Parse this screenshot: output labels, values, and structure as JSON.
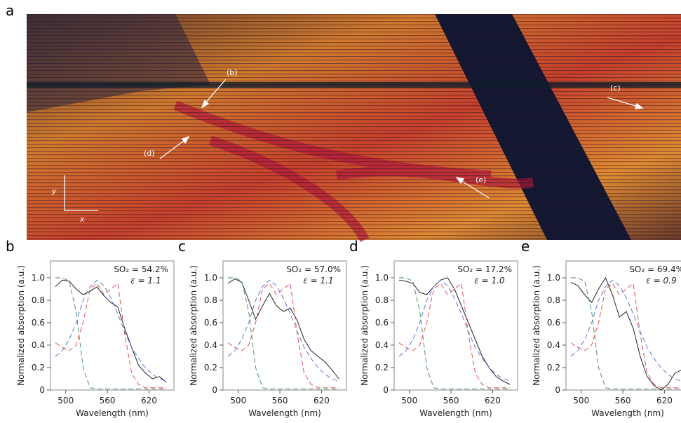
{
  "image_panel": {
    "label": "a",
    "annotations": [
      "(b)",
      "(c)",
      "(d)",
      "(e)"
    ],
    "axis_y": "y",
    "axis_x": "x"
  },
  "chart_data": [
    {
      "type": "line",
      "panel": "b",
      "annotation": [
        "SO₂ = 54.2%",
        "ε = 1.1"
      ],
      "xlabel": "Wavelength (nm)",
      "ylabel": "Normalized absorption (a.u.)",
      "x": [
        485,
        495,
        505,
        515,
        525,
        535,
        545,
        555,
        565,
        575,
        585,
        595,
        605,
        615,
        625,
        635,
        645
      ],
      "xlim": [
        478,
        656
      ],
      "ylim": [
        0,
        1.15
      ],
      "xticks": [
        500,
        560,
        620
      ],
      "yticks": [
        0,
        0.2,
        0.4,
        0.6,
        0.8,
        {
          "value": 1,
          "label": "1.0"
        }
      ],
      "series": [
        {
          "color": "#222222",
          "dashed": false,
          "values": [
            0.92,
            0.98,
            0.97,
            0.9,
            0.85,
            0.88,
            0.92,
            0.84,
            0.78,
            0.74,
            0.55,
            0.38,
            0.22,
            0.15,
            0.1,
            0.12,
            0.07
          ]
        },
        {
          "color": "#3a8a4a",
          "dashed": true,
          "values": [
            1.0,
            1.0,
            0.97,
            0.7,
            0.2,
            0.02,
            0.01,
            0.01,
            0.01,
            0.01,
            0.01,
            0.01,
            0.01,
            0.01,
            0.01,
            0.01,
            0.01
          ]
        },
        {
          "color": "#e0404a",
          "dashed": true,
          "values": [
            0.42,
            0.38,
            0.35,
            0.4,
            0.6,
            0.9,
            0.95,
            0.85,
            0.9,
            0.95,
            0.5,
            0.15,
            0.05,
            0.02,
            0.02,
            0.02,
            0.02
          ]
        },
        {
          "color": "#4a6ad0",
          "dashed": true,
          "values": [
            0.3,
            0.35,
            0.45,
            0.6,
            0.8,
            0.92,
            0.98,
            0.93,
            0.82,
            0.68,
            0.52,
            0.38,
            0.28,
            0.2,
            0.14,
            0.1,
            0.08
          ]
        }
      ]
    },
    {
      "type": "line",
      "panel": "c",
      "annotation": [
        "SO₂ = 57.0%",
        "ε = 1.1"
      ],
      "xlabel": "Wavelength (nm)",
      "ylabel": "Normalized absorption (a.u.)",
      "x": [
        485,
        495,
        505,
        515,
        525,
        535,
        545,
        555,
        565,
        575,
        585,
        595,
        605,
        615,
        625,
        635,
        645
      ],
      "xlim": [
        478,
        656
      ],
      "ylim": [
        0,
        1.15
      ],
      "xticks": [
        500,
        560,
        620
      ],
      "yticks": [
        0,
        0.2,
        0.4,
        0.6,
        0.8,
        {
          "value": 1,
          "label": "1.0"
        }
      ],
      "series": [
        {
          "color": "#222222",
          "dashed": false,
          "values": [
            0.95,
            0.99,
            0.96,
            0.8,
            0.63,
            0.75,
            0.86,
            0.75,
            0.7,
            0.73,
            0.62,
            0.45,
            0.35,
            0.3,
            0.25,
            0.18,
            0.1
          ]
        },
        {
          "color": "#3a8a4a",
          "dashed": true,
          "values": [
            1.0,
            1.0,
            0.97,
            0.7,
            0.2,
            0.02,
            0.01,
            0.01,
            0.01,
            0.01,
            0.01,
            0.01,
            0.01,
            0.01,
            0.01,
            0.01,
            0.01
          ]
        },
        {
          "color": "#e0404a",
          "dashed": true,
          "values": [
            0.42,
            0.38,
            0.35,
            0.4,
            0.6,
            0.9,
            0.95,
            0.85,
            0.9,
            0.95,
            0.5,
            0.15,
            0.05,
            0.02,
            0.02,
            0.02,
            0.02
          ]
        },
        {
          "color": "#4a6ad0",
          "dashed": true,
          "values": [
            0.3,
            0.35,
            0.45,
            0.6,
            0.8,
            0.92,
            0.98,
            0.93,
            0.82,
            0.68,
            0.52,
            0.38,
            0.28,
            0.2,
            0.14,
            0.1,
            0.08
          ]
        }
      ]
    },
    {
      "type": "line",
      "panel": "d",
      "annotation": [
        "SO₂ = 17.2%",
        "ε = 1.0"
      ],
      "xlabel": "Wavelength (nm)",
      "ylabel": "Normalized absorption (a.u.)",
      "x": [
        485,
        495,
        505,
        515,
        525,
        535,
        545,
        555,
        565,
        575,
        585,
        595,
        605,
        615,
        625,
        635,
        645
      ],
      "xlim": [
        478,
        656
      ],
      "ylim": [
        0,
        1.15
      ],
      "xticks": [
        500,
        560,
        620
      ],
      "yticks": [
        0,
        0.2,
        0.4,
        0.6,
        0.8,
        {
          "value": 1,
          "label": "1.0"
        }
      ],
      "series": [
        {
          "color": "#222222",
          "dashed": false,
          "values": [
            0.98,
            0.97,
            0.95,
            0.87,
            0.85,
            0.92,
            0.98,
            1.0,
            0.9,
            0.75,
            0.6,
            0.45,
            0.3,
            0.2,
            0.12,
            0.08,
            0.05
          ]
        },
        {
          "color": "#3a8a4a",
          "dashed": true,
          "values": [
            1.0,
            1.0,
            0.97,
            0.7,
            0.2,
            0.02,
            0.01,
            0.01,
            0.01,
            0.01,
            0.01,
            0.01,
            0.01,
            0.01,
            0.01,
            0.01,
            0.01
          ]
        },
        {
          "color": "#e0404a",
          "dashed": true,
          "values": [
            0.42,
            0.38,
            0.35,
            0.4,
            0.6,
            0.9,
            0.95,
            0.85,
            0.9,
            0.95,
            0.5,
            0.15,
            0.05,
            0.02,
            0.02,
            0.02,
            0.02
          ]
        },
        {
          "color": "#4a6ad0",
          "dashed": true,
          "values": [
            0.3,
            0.35,
            0.45,
            0.6,
            0.8,
            0.92,
            0.98,
            0.93,
            0.82,
            0.68,
            0.52,
            0.38,
            0.28,
            0.2,
            0.14,
            0.1,
            0.08
          ]
        }
      ]
    },
    {
      "type": "line",
      "panel": "e",
      "annotation": [
        "SO₂ = 69.4%",
        "ε = 0.9"
      ],
      "xlabel": "Wavelength (nm)",
      "ylabel": "Normalized absorption (a.u.)",
      "x": [
        485,
        495,
        505,
        515,
        525,
        535,
        545,
        555,
        565,
        575,
        585,
        595,
        605,
        615,
        625,
        635,
        645
      ],
      "xlim": [
        478,
        656
      ],
      "ylim": [
        0,
        1.15
      ],
      "xticks": [
        500,
        560,
        620
      ],
      "yticks": [
        0,
        0.2,
        0.4,
        0.6,
        0.8,
        {
          "value": 1,
          "label": "1.0"
        }
      ],
      "series": [
        {
          "color": "#222222",
          "dashed": false,
          "values": [
            0.96,
            0.93,
            0.85,
            0.78,
            0.9,
            1.0,
            0.85,
            0.65,
            0.7,
            0.55,
            0.3,
            0.12,
            0.04,
            0.0,
            0.05,
            0.15,
            0.18
          ]
        },
        {
          "color": "#3a8a4a",
          "dashed": true,
          "values": [
            1.0,
            1.0,
            0.97,
            0.7,
            0.2,
            0.02,
            0.01,
            0.01,
            0.01,
            0.01,
            0.01,
            0.01,
            0.01,
            0.01,
            0.01,
            0.01,
            0.01
          ]
        },
        {
          "color": "#e0404a",
          "dashed": true,
          "values": [
            0.42,
            0.38,
            0.35,
            0.4,
            0.6,
            0.9,
            0.95,
            0.85,
            0.9,
            0.95,
            0.5,
            0.15,
            0.05,
            0.02,
            0.02,
            0.02,
            0.02
          ]
        },
        {
          "color": "#4a6ad0",
          "dashed": true,
          "values": [
            0.3,
            0.35,
            0.45,
            0.6,
            0.8,
            0.92,
            0.98,
            0.93,
            0.82,
            0.68,
            0.52,
            0.38,
            0.28,
            0.2,
            0.14,
            0.1,
            0.08
          ]
        }
      ]
    }
  ]
}
